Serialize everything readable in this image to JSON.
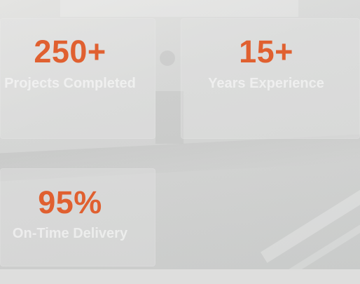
{
  "stats": [
    {
      "value": "250+",
      "label": "Projects Completed"
    },
    {
      "value": "15+",
      "label": "Years Experience"
    },
    {
      "value": "95%",
      "label": "On-Time Delivery"
    }
  ],
  "colors": {
    "accent": "#e06030",
    "label": "#ffffff",
    "background": "#d6d7d6"
  }
}
